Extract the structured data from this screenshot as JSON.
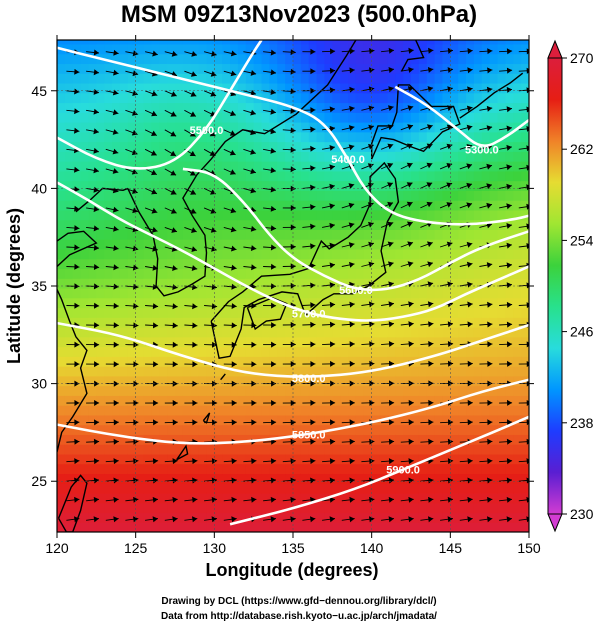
{
  "chart_data": {
    "type": "heatmap",
    "title": "MSM 09Z13Nov2023 (500.0hPa)",
    "xlabel": "Longitude (degrees)",
    "ylabel": "Latitude  (degrees)",
    "xlim": [
      120,
      150
    ],
    "ylim": [
      22.4,
      47.6
    ],
    "xticks": [
      "120",
      "125",
      "130",
      "135",
      "140",
      "145",
      "150"
    ],
    "yticks": [
      "25",
      "30",
      "35",
      "40",
      "45"
    ],
    "colorbar": {
      "min": 230,
      "max": 270,
      "ticks": [
        "230",
        "238",
        "246",
        "254",
        "262",
        "270"
      ],
      "colors": [
        "#d23cd2",
        "#5a1ed2",
        "#1e3cff",
        "#0096ff",
        "#28dcdc",
        "#28e18c",
        "#3cd23c",
        "#a0e632",
        "#e6dc32",
        "#f08228",
        "#e61e14",
        "#dc1e3c"
      ]
    },
    "contours": [
      {
        "value": 5300,
        "label": "5300.0",
        "points": [
          [
            141.5,
            45.2
          ],
          [
            143.5,
            44.3
          ],
          [
            145.5,
            43.0
          ],
          [
            147.0,
            42.0
          ],
          [
            148.5,
            42.6
          ],
          [
            150,
            43.5
          ]
        ]
      },
      {
        "value": 5400,
        "label": "5400.0",
        "points": [
          [
            120,
            47.2
          ],
          [
            123,
            46.6
          ],
          [
            126,
            46.0
          ],
          [
            129,
            45.4
          ],
          [
            132,
            44.8
          ],
          [
            135,
            44.2
          ],
          [
            137,
            43.4
          ],
          [
            138.5,
            41.5
          ],
          [
            139.5,
            40.0
          ],
          [
            141,
            38.8
          ],
          [
            143,
            38.3
          ],
          [
            146,
            38.1
          ],
          [
            149,
            38.4
          ],
          [
            150,
            38.6
          ]
        ]
      },
      {
        "value": 5500,
        "label": "5500.0",
        "points": [
          [
            120,
            42.6
          ],
          [
            122.5,
            41.5
          ],
          [
            125,
            40.9
          ],
          [
            127.5,
            41.3
          ],
          [
            129.5,
            43.0
          ],
          [
            131,
            45.0
          ],
          [
            132.5,
            47.0
          ],
          [
            133,
            47.6
          ]
        ]
      },
      {
        "value": 5600,
        "label": "5600.0",
        "points": [
          [
            128,
            41.0
          ],
          [
            130,
            40.8
          ],
          [
            132,
            39.2
          ],
          [
            133.5,
            37.6
          ],
          [
            135,
            36.4
          ],
          [
            137,
            35.5
          ],
          [
            139,
            34.8
          ],
          [
            141,
            34.8
          ],
          [
            143,
            35.3
          ],
          [
            145,
            36.2
          ],
          [
            147,
            37.0
          ],
          [
            150,
            37.8
          ]
        ]
      },
      {
        "value": 5700,
        "label": "5700.0",
        "points": [
          [
            120,
            40.3
          ],
          [
            122,
            39.4
          ],
          [
            124,
            38.4
          ],
          [
            126,
            37.6
          ],
          [
            128,
            36.8
          ],
          [
            130,
            35.9
          ],
          [
            132,
            35.0
          ],
          [
            134,
            34.2
          ],
          [
            136,
            33.6
          ],
          [
            138,
            33.3
          ],
          [
            140,
            33.2
          ],
          [
            142,
            33.4
          ],
          [
            144,
            33.8
          ],
          [
            146,
            34.6
          ],
          [
            148,
            35.3
          ],
          [
            150,
            36.0
          ]
        ]
      },
      {
        "value": 5800,
        "label": "5800.0",
        "points": [
          [
            120,
            33.1
          ],
          [
            124,
            32.5
          ],
          [
            128,
            31.4
          ],
          [
            132,
            30.5
          ],
          [
            136,
            30.3
          ],
          [
            140,
            30.6
          ],
          [
            144,
            31.4
          ],
          [
            147,
            32.2
          ],
          [
            150,
            33.0
          ]
        ]
      },
      {
        "value": 5850,
        "label": "5850.0",
        "points": [
          [
            120,
            27.9
          ],
          [
            124,
            27.3
          ],
          [
            128,
            26.9
          ],
          [
            132,
            27.0
          ],
          [
            136,
            27.4
          ],
          [
            140,
            28.0
          ],
          [
            144,
            28.8
          ],
          [
            147,
            29.6
          ],
          [
            150,
            30.2
          ]
        ]
      },
      {
        "value": 5900,
        "label": "5900.0",
        "points": [
          [
            131,
            22.8
          ],
          [
            135,
            23.6
          ],
          [
            139,
            24.6
          ],
          [
            142,
            25.6
          ],
          [
            145,
            26.6
          ],
          [
            148,
            27.6
          ],
          [
            150,
            28.3
          ]
        ]
      }
    ]
  },
  "credits": {
    "line1": "Drawing by DCL (https://www.gfd−dennou.org/library/dcl/)",
    "line2": "Data from http://database.rish.kyoto−u.ac.jp/arch/jmadata/"
  }
}
